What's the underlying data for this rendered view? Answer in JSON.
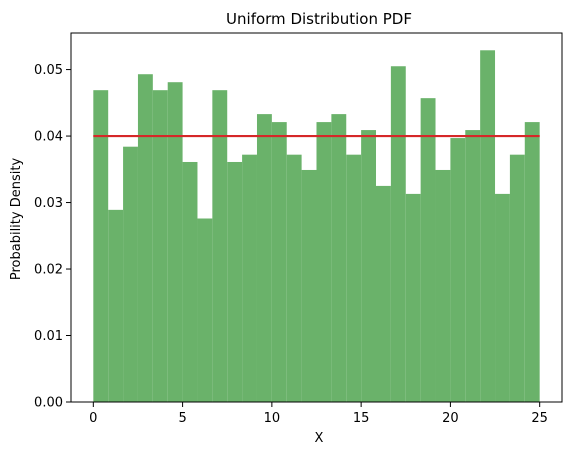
{
  "chart_data": {
    "type": "bar",
    "title": "Uniform Distribution PDF",
    "xlabel": "X",
    "ylabel": "Probability Density",
    "xlim": [
      -1.25,
      26.25
    ],
    "ylim": [
      0,
      0.0555
    ],
    "x_ticks": [
      0,
      5,
      10,
      15,
      20,
      25
    ],
    "x_tick_labels": [
      "0",
      "5",
      "10",
      "15",
      "20",
      "25"
    ],
    "y_ticks": [
      0,
      0.01,
      0.02,
      0.03,
      0.04,
      0.05
    ],
    "y_tick_labels": [
      "0.00",
      "0.01",
      "0.02",
      "0.03",
      "0.04",
      "0.05"
    ],
    "grid": false,
    "series": [
      {
        "type": "histogram",
        "color": "#6ab26a",
        "bin_start": 0,
        "bin_width": 0.8333,
        "values": [
          0.0469,
          0.0289,
          0.0384,
          0.0493,
          0.0469,
          0.0481,
          0.0361,
          0.0276,
          0.0469,
          0.0361,
          0.0372,
          0.0433,
          0.0421,
          0.0372,
          0.0349,
          0.0421,
          0.0433,
          0.0372,
          0.0409,
          0.0325,
          0.0505,
          0.0313,
          0.0457,
          0.0349,
          0.0397,
          0.0409,
          0.0529,
          0.0313,
          0.0372,
          0.0421
        ]
      },
      {
        "type": "line",
        "color": "#d62728",
        "x": [
          0,
          25
        ],
        "y": [
          0.04,
          0.04
        ]
      }
    ]
  }
}
